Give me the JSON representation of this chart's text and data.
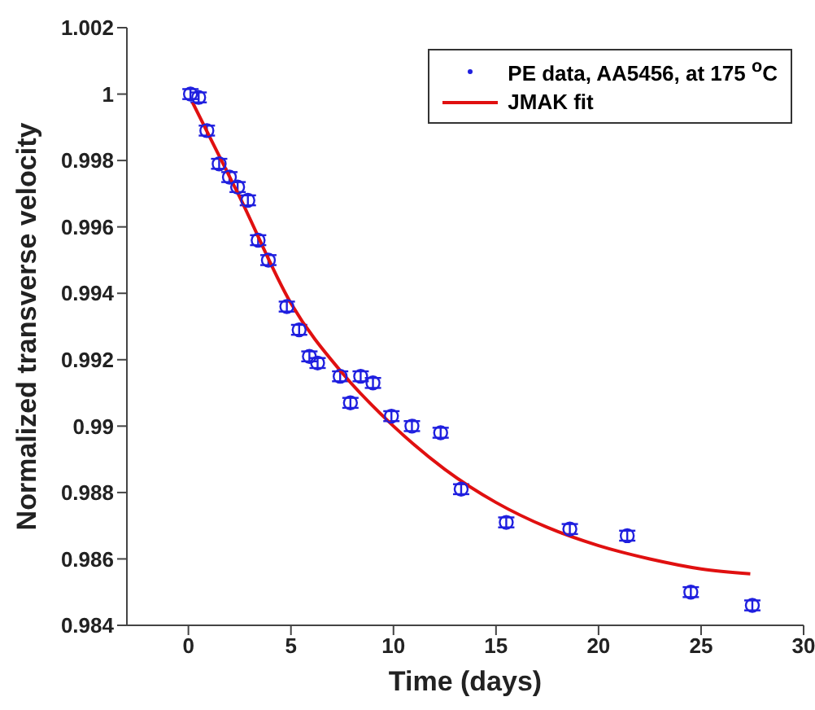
{
  "chart_data": {
    "type": "scatter",
    "xlabel": "Time (days)",
    "ylabel": "Normalized transverse velocity",
    "xlim": [
      -3,
      30
    ],
    "xticks": [
      0,
      5,
      10,
      15,
      20,
      25,
      30
    ],
    "ylim": [
      0.984,
      1.002
    ],
    "yticks": [
      0.984,
      0.986,
      0.988,
      0.99,
      0.992,
      0.994,
      0.996,
      0.998,
      {
        "value": 1,
        "label": "1"
      },
      1.002
    ],
    "legend": "top right",
    "grid": false,
    "series": [
      {
        "name": "PE data, AA5456, at 175 $^{o}$C",
        "marker": "circle",
        "color": "#1f1fdf",
        "x": [
          0.1,
          0.5,
          0.9,
          1.5,
          2.0,
          2.4,
          2.9,
          3.4,
          3.9,
          4.8,
          5.4,
          5.9,
          6.3,
          7.4,
          7.9,
          8.4,
          9.0,
          9.9,
          10.9,
          12.3,
          13.3,
          15.5,
          18.6,
          21.4,
          24.5,
          27.5
        ],
        "values": [
          1.0,
          0.9999,
          0.9989,
          0.9979,
          0.9975,
          0.9972,
          0.9968,
          0.9956,
          0.995,
          0.9936,
          0.9929,
          0.9921,
          0.9919,
          0.9915,
          0.9907,
          0.9915,
          0.9913,
          0.9903,
          0.99,
          0.9898,
          0.9881,
          0.9871,
          0.9869,
          0.9867,
          0.985,
          0.9846
        ],
        "errors": [
          0.00015,
          0.00015,
          0.00015,
          0.00015,
          0.00015,
          0.00015,
          0.00015,
          0.00015,
          0.00015,
          0.00015,
          0.00015,
          0.00015,
          0.00015,
          0.00015,
          0.00015,
          0.00015,
          0.00015,
          0.00015,
          0.00015,
          0.00015,
          0.00015,
          0.00015,
          0.00015,
          0.00015,
          0.00015,
          0.00015
        ]
      },
      {
        "name": "JMAK fit",
        "type": "line",
        "color": "#e01010",
        "line_style": "solid",
        "x": [
          0.2,
          2.5,
          5,
          7.5,
          10,
          12.5,
          15,
          17.5,
          20,
          22.5,
          25,
          27.4
        ],
        "values": [
          0.99975,
          0.9969,
          0.9937,
          0.9916,
          0.99,
          0.9887,
          0.9877,
          0.98695,
          0.9864,
          0.986,
          0.9857,
          0.98555
        ]
      }
    ]
  }
}
